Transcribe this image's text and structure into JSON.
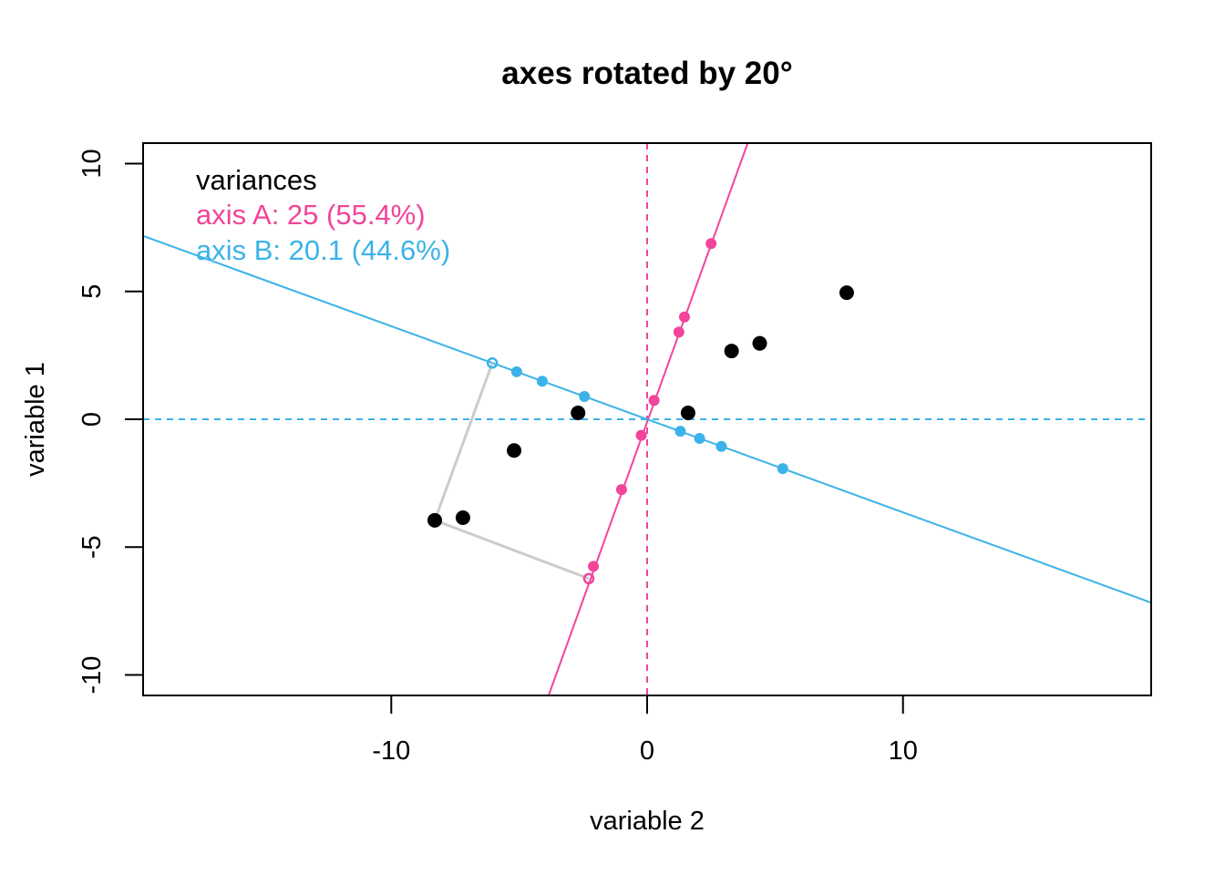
{
  "chart_data": {
    "type": "scatter",
    "title": "axes rotated by 20°",
    "xlabel": "variable 2",
    "ylabel": "variable 1",
    "xlim": [
      -19.7,
      19.7
    ],
    "ylim": [
      -10.8,
      10.8
    ],
    "x_ticks": [
      -10,
      0,
      10
    ],
    "x_tick_labels": [
      "-10",
      "0",
      "10"
    ],
    "y_ticks": [
      -10,
      -5,
      0,
      5,
      10
    ],
    "y_tick_labels": [
      "-10",
      "-5",
      "0",
      "5",
      "10"
    ],
    "rotation_degrees": 20,
    "grid": false,
    "legend": {
      "position": "top-left",
      "title": "variances",
      "entries": [
        {
          "label": "axis A: 25 (55.4%)",
          "color": "#F2449B"
        },
        {
          "label": "axis B: 20.1 (44.6%)",
          "color": "#3BB3E8"
        }
      ]
    },
    "colors": {
      "points": "#000000",
      "axis_a": "#F2449B",
      "axis_b": "#3BB3E8",
      "projection_lines": "#CCCCCC"
    },
    "series": [
      {
        "name": "",
        "color": "#000000",
        "points": [
          {
            "x": 7.8,
            "y": 4.95
          },
          {
            "x": 4.4,
            "y": 2.97
          },
          {
            "x": 3.3,
            "y": 2.67
          },
          {
            "x": 1.6,
            "y": 0.25
          },
          {
            "x": -2.7,
            "y": 0.25
          },
          {
            "x": -5.2,
            "y": -1.22
          },
          {
            "x": -7.2,
            "y": -3.85
          },
          {
            "x": -8.3,
            "y": -3.95
          }
        ]
      }
    ],
    "axis_a_line": {
      "from": [
        -3.85,
        -10.8
      ],
      "to": [
        3.93,
        10.8
      ]
    },
    "axis_b_line": {
      "from": [
        -19.7,
        7.17
      ],
      "to": [
        19.7,
        -7.17
      ]
    },
    "axis_a_projections": [
      {
        "x": 2.5,
        "y": 6.87
      },
      {
        "x": 1.46,
        "y": 4.0
      },
      {
        "x": 1.24,
        "y": 3.41
      },
      {
        "x": 0.27,
        "y": 0.74
      },
      {
        "x": -0.23,
        "y": -0.63
      },
      {
        "x": -1.0,
        "y": -2.75
      },
      {
        "x": -2.1,
        "y": -5.75
      },
      {
        "x": -2.28,
        "y": -6.23
      }
    ],
    "axis_b_projections": [
      {
        "x": 5.3,
        "y": -1.93
      },
      {
        "x": 2.9,
        "y": -1.06
      },
      {
        "x": 2.05,
        "y": -0.75
      },
      {
        "x": 1.3,
        "y": -0.47
      },
      {
        "x": -2.45,
        "y": 0.89
      },
      {
        "x": -4.1,
        "y": 1.49
      },
      {
        "x": -5.1,
        "y": 1.86
      },
      {
        "x": -6.05,
        "y": 2.2
      }
    ],
    "highlighted_point": {
      "x": -8.3,
      "y": -3.95
    }
  }
}
